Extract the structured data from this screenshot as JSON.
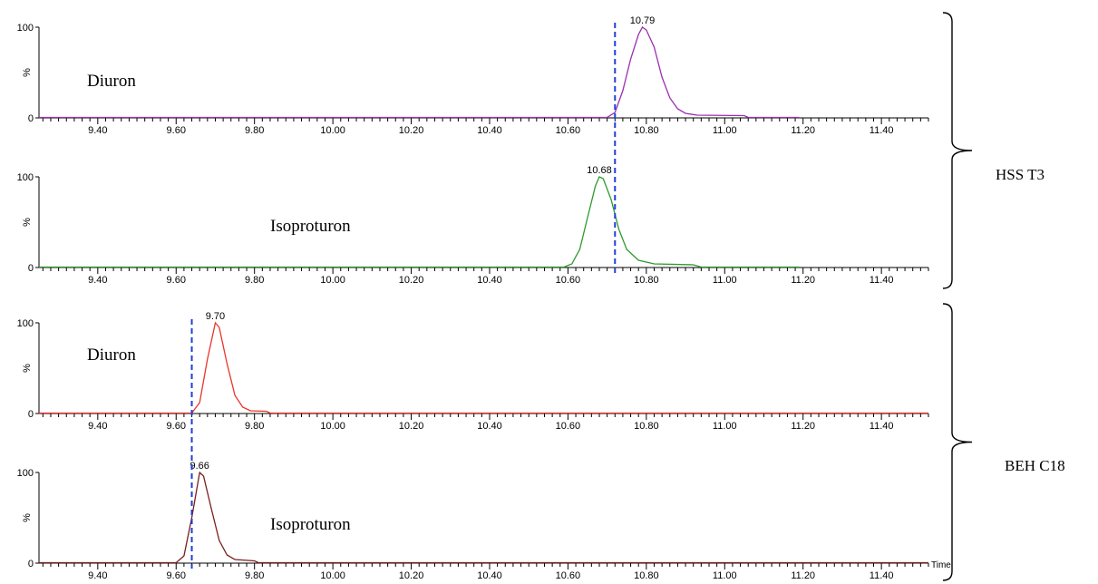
{
  "chart_data": {
    "type": "line",
    "x_axis_label": "Time",
    "x_ticks": [
      "9.40",
      "9.60",
      "9.80",
      "10.00",
      "10.20",
      "10.40",
      "10.60",
      "10.80",
      "11.00",
      "11.20",
      "11.40"
    ],
    "y_ticks": [
      "0",
      "100"
    ],
    "y_unit": "%",
    "xlim": [
      9.25,
      11.52
    ],
    "ylim": [
      0,
      100
    ],
    "groups": [
      {
        "label": "HSS T3",
        "panels": [
          0,
          1
        ],
        "marker_x": 10.72
      },
      {
        "label": "BEH C18",
        "panels": [
          2,
          3
        ],
        "marker_x": 9.64
      }
    ],
    "panels": [
      {
        "compound": "Diuron",
        "color": "#9b2fb0",
        "peak_label": "10.79",
        "trace_end": 11.19,
        "points": [
          [
            9.25,
            0.5
          ],
          [
            10.7,
            0.5
          ],
          [
            10.72,
            6
          ],
          [
            10.74,
            30
          ],
          [
            10.76,
            65
          ],
          [
            10.78,
            92
          ],
          [
            10.79,
            100
          ],
          [
            10.8,
            97
          ],
          [
            10.82,
            78
          ],
          [
            10.84,
            45
          ],
          [
            10.86,
            22
          ],
          [
            10.88,
            10
          ],
          [
            10.9,
            5
          ],
          [
            10.93,
            3
          ],
          [
            11.05,
            2.5
          ],
          [
            11.06,
            0.5
          ],
          [
            11.19,
            0.5
          ]
        ]
      },
      {
        "compound": "Isoproturon",
        "color": "#2e9a2e",
        "peak_label": "10.68",
        "trace_end": 11.19,
        "points": [
          [
            9.25,
            0.5
          ],
          [
            10.59,
            0.5
          ],
          [
            10.61,
            4
          ],
          [
            10.63,
            20
          ],
          [
            10.65,
            55
          ],
          [
            10.67,
            90
          ],
          [
            10.68,
            100
          ],
          [
            10.69,
            98
          ],
          [
            10.71,
            75
          ],
          [
            10.73,
            42
          ],
          [
            10.75,
            20
          ],
          [
            10.78,
            8
          ],
          [
            10.82,
            4
          ],
          [
            10.92,
            3
          ],
          [
            10.94,
            0.5
          ],
          [
            11.19,
            0.5
          ]
        ]
      },
      {
        "compound": "Diuron",
        "color": "#e8352a",
        "peak_label": "9.70",
        "trace_end": 11.52,
        "points": [
          [
            9.25,
            0.5
          ],
          [
            9.64,
            0.5
          ],
          [
            9.66,
            12
          ],
          [
            9.68,
            60
          ],
          [
            9.7,
            100
          ],
          [
            9.71,
            95
          ],
          [
            9.73,
            55
          ],
          [
            9.75,
            20
          ],
          [
            9.77,
            7
          ],
          [
            9.79,
            3
          ],
          [
            9.83,
            2.5
          ],
          [
            9.84,
            0.5
          ],
          [
            11.52,
            0.5
          ]
        ]
      },
      {
        "compound": "Isoproturon",
        "color": "#7a1f1f",
        "peak_label": "9.66",
        "trace_end": 11.52,
        "points": [
          [
            9.25,
            0.5
          ],
          [
            9.6,
            0.5
          ],
          [
            9.62,
            8
          ],
          [
            9.64,
            50
          ],
          [
            9.66,
            100
          ],
          [
            9.67,
            96
          ],
          [
            9.69,
            60
          ],
          [
            9.71,
            25
          ],
          [
            9.73,
            9
          ],
          [
            9.75,
            4
          ],
          [
            9.8,
            2.5
          ],
          [
            9.81,
            0.5
          ],
          [
            11.52,
            0.5
          ]
        ]
      }
    ]
  }
}
